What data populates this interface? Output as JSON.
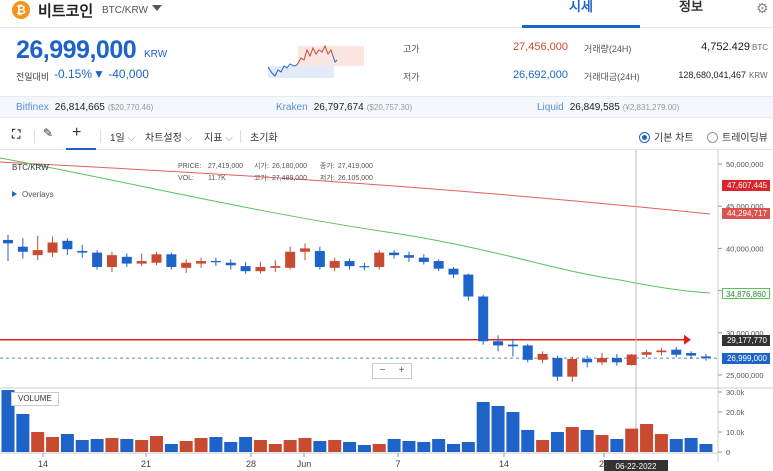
{
  "header": {
    "coin_symbol": "₿",
    "coin_name": "비트코인",
    "pair": "BTC/KRW",
    "tabs": [
      "시세",
      "정보"
    ],
    "settings_icon": "gear-icon"
  },
  "summary": {
    "price": "26,999,000",
    "unit": "KRW",
    "change_label": "전일대비",
    "change_pct": "-0.15%",
    "change_amt": "▼ -40,000",
    "high_label": "고가",
    "high": "27,456,000",
    "low_label": "저가",
    "low": "26,692,000",
    "volume_label": "거래량(24H)",
    "volume": "4,752.429",
    "volume_unit": "BTC",
    "value_label": "거래대금(24H)",
    "value": "128,680,041,467",
    "value_unit": "KRW"
  },
  "exchanges": [
    {
      "name": "Bitfinex",
      "price": "26,814,665",
      "sub": "($20,770.46)"
    },
    {
      "name": "Kraken",
      "price": "26,797,674",
      "sub": "($20,757.30)"
    },
    {
      "name": "Liquid",
      "price": "26,849,585",
      "sub": "(¥2,831,279.00)"
    }
  ],
  "toolbar": {
    "interval": "1일",
    "chart_settings": "차트설정",
    "indicators": "지표",
    "reset": "초기화",
    "basic_chart": "기본 차트",
    "tradingview": "트레이딩뷰"
  },
  "chart": {
    "pair_label": "BTC/KRW",
    "overlays_label": "Overlays",
    "ohlc": {
      "price_label": "PRICE:",
      "price": "27,419,000",
      "open_label": "시가:",
      "open": "26,180,000",
      "close_label": "종가:",
      "close": "27,419,000",
      "vol_label": "VOL:",
      "vol": "11.7K",
      "high_label": "고가:",
      "high": "27,489,000",
      "low_label": "저가:",
      "low": "26,105,000"
    },
    "price_ticks": [
      "50,000,000",
      "45,000,000",
      "40,000,000",
      "35,000,000",
      "30,000,000",
      "25,000,000"
    ],
    "tags": {
      "ma_red": "47,607,445",
      "ma_salmon": "44,294,717",
      "ma_green": "34,876,860",
      "line": "29,177,770",
      "last": "26,999,000"
    },
    "volume_label": "VOLUME",
    "volume_ticks": [
      "30.0k",
      "20.0k",
      "10.0k",
      "0"
    ],
    "x_ticks": [
      "14",
      "21",
      "28",
      "Jun",
      "7",
      "14",
      "21"
    ],
    "crosshair_date": "06-22-2022",
    "zoom_minus": "−",
    "zoom_plus": "+"
  },
  "colors": {
    "up": "#c84a31",
    "down": "#1e63c7",
    "accent": "#1e63c7",
    "ma_red": "#e06060",
    "ma_green": "#5cc15c"
  },
  "chart_data": {
    "type": "candlestick",
    "ylim": [
      25000000,
      50000000
    ],
    "candles": [
      {
        "o": 41000000,
        "c": 40600000,
        "h": 41600000,
        "l": 38500000
      },
      {
        "o": 40200000,
        "c": 39600000,
        "h": 41200000,
        "l": 38800000
      },
      {
        "o": 39200000,
        "c": 39800000,
        "h": 41500000,
        "l": 38600000
      },
      {
        "o": 39500000,
        "c": 40700000,
        "h": 41400000,
        "l": 39000000
      },
      {
        "o": 40900000,
        "c": 39900000,
        "h": 41200000,
        "l": 39200000
      },
      {
        "o": 39700000,
        "c": 39500000,
        "h": 40400000,
        "l": 38900000
      },
      {
        "o": 39500000,
        "c": 37800000,
        "h": 39800000,
        "l": 37500000
      },
      {
        "o": 37800000,
        "c": 39200000,
        "h": 39600000,
        "l": 37200000
      },
      {
        "o": 39000000,
        "c": 38200000,
        "h": 39400000,
        "l": 37800000
      },
      {
        "o": 38200000,
        "c": 38500000,
        "h": 39400000,
        "l": 37900000
      },
      {
        "o": 38300000,
        "c": 39300000,
        "h": 39600000,
        "l": 38000000
      },
      {
        "o": 39300000,
        "c": 37800000,
        "h": 39500000,
        "l": 37500000
      },
      {
        "o": 37700000,
        "c": 38300000,
        "h": 38700000,
        "l": 37100000
      },
      {
        "o": 38200000,
        "c": 38500000,
        "h": 38900000,
        "l": 37700000
      },
      {
        "o": 38500000,
        "c": 38400000,
        "h": 38900000,
        "l": 37900000
      },
      {
        "o": 38300000,
        "c": 38000000,
        "h": 38700000,
        "l": 37500000
      },
      {
        "o": 37900000,
        "c": 37300000,
        "h": 38400000,
        "l": 37000000
      },
      {
        "o": 37300000,
        "c": 37800000,
        "h": 38400000,
        "l": 37000000
      },
      {
        "o": 37700000,
        "c": 37900000,
        "h": 38600000,
        "l": 37200000
      },
      {
        "o": 37700000,
        "c": 39600000,
        "h": 40200000,
        "l": 37500000
      },
      {
        "o": 39600000,
        "c": 40000000,
        "h": 40600000,
        "l": 38600000
      },
      {
        "o": 39700000,
        "c": 37800000,
        "h": 40200000,
        "l": 37500000
      },
      {
        "o": 37700000,
        "c": 38500000,
        "h": 38900000,
        "l": 37300000
      },
      {
        "o": 38500000,
        "c": 37900000,
        "h": 38800000,
        "l": 37500000
      },
      {
        "o": 37900000,
        "c": 37800000,
        "h": 38300000,
        "l": 37400000
      },
      {
        "o": 37800000,
        "c": 39500000,
        "h": 39800000,
        "l": 37500000
      },
      {
        "o": 39500000,
        "c": 39200000,
        "h": 39800000,
        "l": 38800000
      },
      {
        "o": 39200000,
        "c": 38900000,
        "h": 39600000,
        "l": 38400000
      },
      {
        "o": 38900000,
        "c": 38400000,
        "h": 39300000,
        "l": 38100000
      },
      {
        "o": 38500000,
        "c": 37600000,
        "h": 38700000,
        "l": 37300000
      },
      {
        "o": 37600000,
        "c": 36900000,
        "h": 37800000,
        "l": 36500000
      },
      {
        "o": 36900000,
        "c": 34300000,
        "h": 37000000,
        "l": 33800000
      },
      {
        "o": 34300000,
        "c": 29000000,
        "h": 34500000,
        "l": 28600000
      },
      {
        "o": 29000000,
        "c": 28500000,
        "h": 29700000,
        "l": 27800000
      },
      {
        "o": 28600000,
        "c": 28400000,
        "h": 29300000,
        "l": 27200000
      },
      {
        "o": 28500000,
        "c": 26800000,
        "h": 28700000,
        "l": 26500000
      },
      {
        "o": 26800000,
        "c": 27500000,
        "h": 27800000,
        "l": 26400000
      },
      {
        "o": 27000000,
        "c": 24800000,
        "h": 27300000,
        "l": 24300000
      },
      {
        "o": 24800000,
        "c": 26900000,
        "h": 27200000,
        "l": 24200000
      },
      {
        "o": 26900000,
        "c": 26500000,
        "h": 27300000,
        "l": 25900000
      },
      {
        "o": 26500000,
        "c": 27000000,
        "h": 27600000,
        "l": 26200000
      },
      {
        "o": 27000000,
        "c": 26500000,
        "h": 27500000,
        "l": 26100000
      },
      {
        "o": 26180000,
        "c": 27419000,
        "h": 27489000,
        "l": 26105000
      },
      {
        "o": 27400000,
        "c": 27700000,
        "h": 28000000,
        "l": 27100000
      },
      {
        "o": 27700000,
        "c": 27900000,
        "h": 28200000,
        "l": 27300000
      },
      {
        "o": 28000000,
        "c": 27400000,
        "h": 28300000,
        "l": 27100000
      },
      {
        "o": 27600000,
        "c": 27300000,
        "h": 27800000,
        "l": 26900000
      },
      {
        "o": 27200000,
        "c": 26999000,
        "h": 27500000,
        "l": 26700000
      }
    ],
    "volumes": [
      31000,
      19000,
      10000,
      7500,
      9000,
      6000,
      6500,
      7000,
      6500,
      6000,
      8000,
      4000,
      5500,
      7000,
      7500,
      5000,
      7500,
      6000,
      4000,
      6000,
      7000,
      5500,
      6000,
      5000,
      3500,
      4000,
      6500,
      5500,
      5000,
      6500,
      4000,
      5000,
      25000,
      23000,
      20000,
      11000,
      6000,
      10000,
      12500,
      11000,
      8500,
      6500,
      11700,
      14000,
      9000,
      6500,
      7000,
      4000
    ],
    "ma_red": [
      [
        0,
        50200000
      ],
      [
        710,
        44294717
      ]
    ],
    "ma_green": [
      [
        0,
        49900000
      ],
      [
        710,
        34876860
      ]
    ],
    "line_level": 29177770
  }
}
